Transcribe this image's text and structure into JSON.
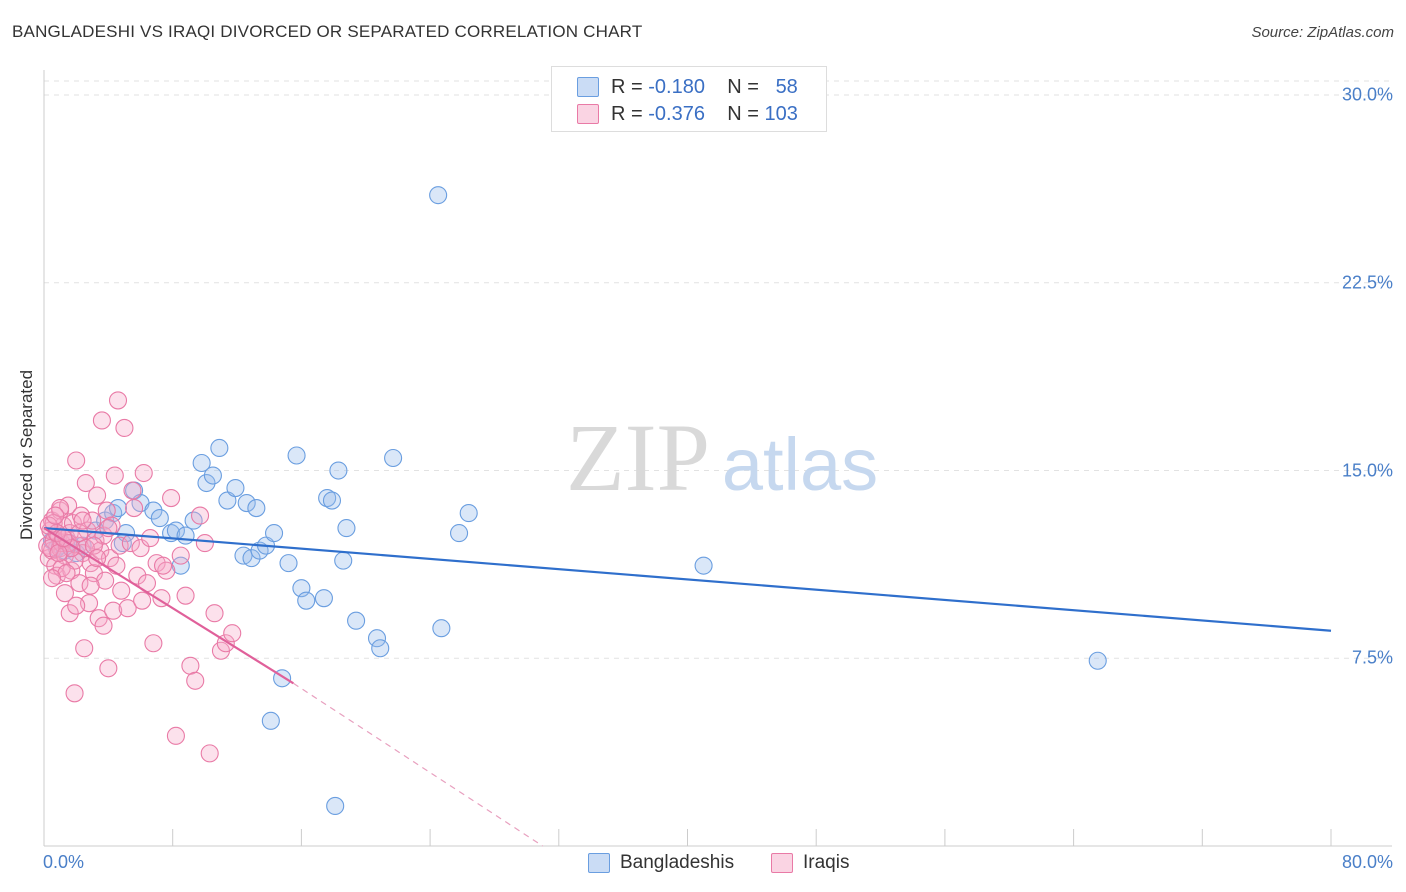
{
  "chart_data": {
    "type": "scatter",
    "title": "BANGLADESHI VS IRAQI DIVORCED OR SEPARATED CORRELATION CHART",
    "source": "Source: ZipAtlas.com",
    "ylabel": "Divorced or Separated",
    "xlabel": "",
    "xlim": [
      0,
      80
    ],
    "ylim": [
      0,
      31
    ],
    "x_tick_labels": [
      "0.0%",
      "80.0%"
    ],
    "y_ticks": [
      7.5,
      15.0,
      22.5,
      30.0
    ],
    "y_tick_labels": [
      "7.5%",
      "15.0%",
      "22.5%",
      "30.0%"
    ],
    "watermark": {
      "zip": "ZIP",
      "atlas": "atlas"
    },
    "legend": {
      "r_label": "R =",
      "n_label": "N =",
      "entries": [
        {
          "r": "-0.180",
          "n": "58"
        },
        {
          "r": "-0.376",
          "n": "103"
        }
      ]
    },
    "series": [
      {
        "name": "Bangladeshis",
        "color": "#6a9ee0",
        "fill": "rgba(150,185,235,0.35)",
        "trend": {
          "x0": 0,
          "y0": 12.7,
          "x1": 80,
          "y1": 8.6
        },
        "points": [
          [
            24.5,
            26.0
          ],
          [
            0.5,
            12.2
          ],
          [
            0.8,
            11.9
          ],
          [
            1.0,
            12.0
          ],
          [
            1.3,
            11.8
          ],
          [
            1.6,
            12.1
          ],
          [
            2.0,
            11.7
          ],
          [
            2.4,
            12.0
          ],
          [
            3.2,
            12.6
          ],
          [
            3.8,
            13.0
          ],
          [
            4.3,
            13.3
          ],
          [
            4.6,
            13.5
          ],
          [
            4.9,
            12.1
          ],
          [
            5.1,
            12.5
          ],
          [
            5.6,
            14.2
          ],
          [
            6.0,
            13.7
          ],
          [
            6.8,
            13.4
          ],
          [
            7.2,
            13.1
          ],
          [
            7.9,
            12.5
          ],
          [
            8.2,
            12.6
          ],
          [
            8.5,
            11.2
          ],
          [
            8.8,
            12.4
          ],
          [
            9.3,
            13.0
          ],
          [
            9.8,
            15.3
          ],
          [
            10.1,
            14.5
          ],
          [
            10.5,
            14.8
          ],
          [
            10.9,
            15.9
          ],
          [
            11.4,
            13.8
          ],
          [
            11.9,
            14.3
          ],
          [
            12.4,
            11.6
          ],
          [
            12.6,
            13.7
          ],
          [
            12.9,
            11.5
          ],
          [
            13.2,
            13.5
          ],
          [
            13.4,
            11.8
          ],
          [
            13.8,
            12.0
          ],
          [
            14.3,
            12.5
          ],
          [
            15.2,
            11.3
          ],
          [
            15.7,
            15.6
          ],
          [
            16.0,
            10.3
          ],
          [
            16.3,
            9.8
          ],
          [
            17.4,
            9.9
          ],
          [
            17.6,
            13.9
          ],
          [
            17.9,
            13.8
          ],
          [
            18.3,
            15.0
          ],
          [
            18.6,
            11.4
          ],
          [
            18.8,
            12.7
          ],
          [
            19.4,
            9.0
          ],
          [
            20.7,
            8.3
          ],
          [
            20.9,
            7.9
          ],
          [
            21.7,
            15.5
          ],
          [
            24.7,
            8.7
          ],
          [
            25.8,
            12.5
          ],
          [
            26.4,
            13.3
          ],
          [
            41.0,
            11.2
          ],
          [
            65.5,
            7.4
          ],
          [
            14.1,
            5.0
          ],
          [
            14.8,
            6.7
          ],
          [
            18.1,
            1.6
          ]
        ]
      },
      {
        "name": "Iraqis",
        "color": "#e97aa6",
        "fill": "rgba(245,170,200,0.35)",
        "trend": {
          "x0": 0,
          "y0": 12.7,
          "x1": 15.5,
          "y1": 6.5
        },
        "trend_dashed": {
          "x0": 15.5,
          "y0": 6.5,
          "x1": 31.0,
          "y1": 0.0
        },
        "points": [
          [
            0.2,
            12.0
          ],
          [
            0.3,
            11.5
          ],
          [
            0.4,
            12.6
          ],
          [
            0.5,
            11.8
          ],
          [
            0.5,
            13.0
          ],
          [
            0.6,
            12.2
          ],
          [
            0.7,
            11.2
          ],
          [
            0.8,
            10.8
          ],
          [
            0.9,
            12.4
          ],
          [
            1.0,
            11.9
          ],
          [
            1.0,
            13.4
          ],
          [
            1.1,
            12.1
          ],
          [
            1.2,
            12.8
          ],
          [
            1.3,
            11.6
          ],
          [
            1.3,
            10.1
          ],
          [
            1.4,
            12.3
          ],
          [
            1.5,
            13.6
          ],
          [
            1.6,
            12.5
          ],
          [
            1.6,
            9.3
          ],
          [
            1.7,
            11.0
          ],
          [
            1.8,
            12.9
          ],
          [
            1.9,
            6.1
          ],
          [
            2.0,
            15.4
          ],
          [
            2.1,
            12.0
          ],
          [
            2.2,
            10.5
          ],
          [
            2.3,
            13.2
          ],
          [
            2.4,
            11.7
          ],
          [
            2.5,
            7.9
          ],
          [
            2.6,
            14.5
          ],
          [
            2.7,
            12.6
          ],
          [
            2.8,
            9.7
          ],
          [
            2.9,
            11.3
          ],
          [
            3.0,
            13.0
          ],
          [
            3.1,
            10.9
          ],
          [
            3.2,
            12.2
          ],
          [
            3.3,
            14.0
          ],
          [
            3.4,
            9.1
          ],
          [
            3.5,
            11.8
          ],
          [
            3.6,
            17.0
          ],
          [
            3.7,
            12.4
          ],
          [
            3.8,
            10.6
          ],
          [
            3.9,
            13.4
          ],
          [
            4.0,
            7.1
          ],
          [
            4.1,
            11.5
          ],
          [
            4.2,
            12.8
          ],
          [
            4.3,
            9.4
          ],
          [
            4.4,
            14.8
          ],
          [
            4.5,
            11.2
          ],
          [
            4.6,
            17.8
          ],
          [
            4.7,
            12.0
          ],
          [
            4.8,
            10.2
          ],
          [
            5.0,
            16.7
          ],
          [
            5.2,
            9.5
          ],
          [
            5.4,
            12.1
          ],
          [
            5.6,
            13.5
          ],
          [
            5.8,
            10.8
          ],
          [
            6.0,
            11.9
          ],
          [
            6.2,
            14.9
          ],
          [
            6.4,
            10.5
          ],
          [
            6.6,
            12.3
          ],
          [
            6.8,
            8.1
          ],
          [
            7.0,
            11.3
          ],
          [
            7.3,
            9.9
          ],
          [
            7.6,
            11.0
          ],
          [
            7.9,
            13.9
          ],
          [
            8.2,
            4.4
          ],
          [
            8.5,
            11.6
          ],
          [
            8.8,
            10.0
          ],
          [
            9.1,
            7.2
          ],
          [
            9.4,
            6.6
          ],
          [
            9.7,
            13.2
          ],
          [
            10.0,
            12.1
          ],
          [
            10.3,
            3.7
          ],
          [
            10.6,
            9.3
          ],
          [
            11.0,
            7.8
          ],
          [
            11.3,
            8.1
          ],
          [
            11.7,
            8.5
          ],
          [
            1.0,
            13.5
          ],
          [
            0.6,
            12.9
          ],
          [
            1.5,
            12.1
          ],
          [
            1.9,
            11.4
          ],
          [
            2.2,
            12.5
          ],
          [
            0.4,
            11.9
          ],
          [
            1.1,
            11.1
          ],
          [
            2.6,
            11.9
          ],
          [
            3.1,
            12.0
          ],
          [
            0.8,
            12.5
          ],
          [
            1.7,
            11.9
          ],
          [
            2.4,
            13.0
          ],
          [
            0.3,
            12.8
          ],
          [
            3.3,
            11.5
          ],
          [
            4.0,
            12.7
          ],
          [
            1.4,
            10.9
          ],
          [
            2.9,
            10.4
          ],
          [
            0.9,
            11.7
          ],
          [
            5.5,
            14.2
          ],
          [
            6.1,
            9.8
          ],
          [
            7.4,
            11.2
          ],
          [
            3.7,
            8.8
          ],
          [
            0.5,
            10.7
          ],
          [
            1.2,
            12.3
          ],
          [
            2.0,
            9.6
          ],
          [
            0.7,
            13.2
          ]
        ]
      }
    ]
  }
}
